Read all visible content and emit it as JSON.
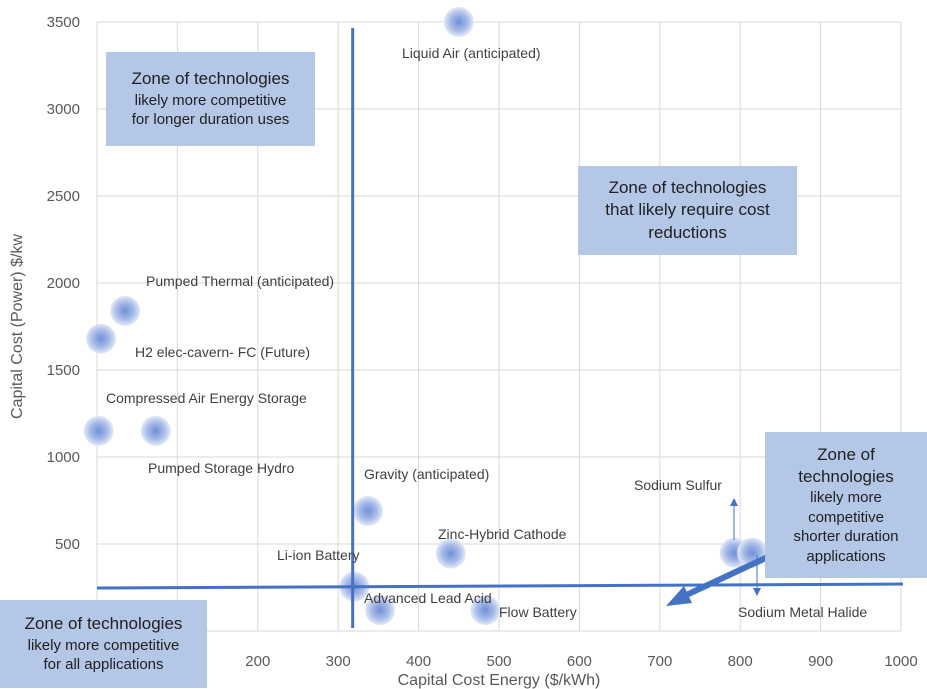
{
  "chart_data": {
    "type": "scatter",
    "xlabel": "Capital Cost Energy ($/kWh)",
    "ylabel": "Capital Cost (Power) $/kw",
    "xlim": [
      0,
      1000
    ],
    "ylim": [
      0,
      3500
    ],
    "x_ticks": [
      "200",
      "300",
      "400",
      "500",
      "600",
      "700",
      "800",
      "900",
      "1000"
    ],
    "y_ticks": [
      "500",
      "1000",
      "1500",
      "2000",
      "2500",
      "3000",
      "3500"
    ],
    "grid": true,
    "points": [
      {
        "label": "Liquid Air (anticipated)",
        "x": 450,
        "y": 3500
      },
      {
        "label": "Pumped Thermal  (anticipated)",
        "x": 35,
        "y": 1840
      },
      {
        "label": "H2 elec-cavern- FC (Future)",
        "x": 5,
        "y": 1680
      },
      {
        "label": "Compressed Air Energy Storage",
        "x": 2,
        "y": 1150
      },
      {
        "label": "Pumped Storage Hydro",
        "x": 73,
        "y": 1150
      },
      {
        "label": "Gravity (anticipated)",
        "x": 337,
        "y": 690
      },
      {
        "label": "Zinc-Hybrid Cathode",
        "x": 440,
        "y": 445
      },
      {
        "label": "Li-ion Battery",
        "x": 320,
        "y": 255
      },
      {
        "label": "Advanced Lead Acid",
        "x": 352,
        "y": 120
      },
      {
        "label": "Flow Battery",
        "x": 483,
        "y": 120
      },
      {
        "label": "Sodium Sulfur",
        "x": 793,
        "y": 450
      },
      {
        "label": "Sodium Metal Halide",
        "x": 815,
        "y": 450
      }
    ],
    "reference_lines": {
      "vertical_x": 318,
      "horizontal_y": 255
    }
  },
  "zones": {
    "top_left": {
      "line1": "Zone of technologies",
      "line2": "likely more competitive",
      "line3": "for longer duration uses"
    },
    "top_right": {
      "line1": "Zone of technologies",
      "line2": "that likely require cost",
      "line3": "reductions"
    },
    "right": {
      "line1": "Zone of",
      "line2": "technologies",
      "line3": "likely more",
      "line4": "competitive",
      "line5": "shorter duration",
      "line6": "applications"
    },
    "bottom_left": {
      "line1": "Zone of technologies",
      "line2": "likely more competitive",
      "line3": "for all applications"
    }
  },
  "colors": {
    "grid": "#d9d9d9",
    "line": "#4472c4",
    "bubble": "#8faadc",
    "zone": "#b4c7e7"
  }
}
